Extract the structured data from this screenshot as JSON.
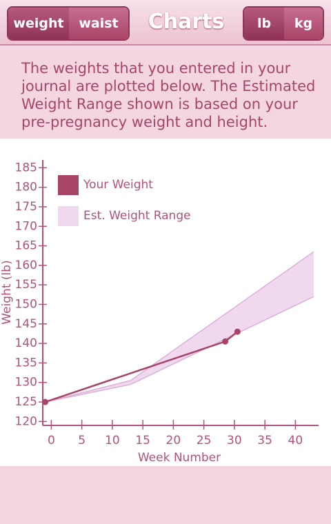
{
  "header": {
    "tabs": [
      "weight",
      "waist"
    ],
    "title": "Charts",
    "units": [
      "lb",
      "kg"
    ]
  },
  "description": [
    "The weights that you entered in your",
    "journal are plotted below. The Estimated",
    "Weight Range shown is based on your",
    "pre-pregnancy weight and height."
  ],
  "chart_data": {
    "type": "line",
    "xlabel": "Week Number",
    "ylabel": "Weight (lb)",
    "xlim": [
      -1.4,
      43.8
    ],
    "ylim": [
      119,
      187
    ],
    "xticks": [
      0,
      5,
      10,
      15,
      20,
      25,
      30,
      35,
      40
    ],
    "yticks": [
      120,
      125,
      130,
      135,
      140,
      145,
      150,
      155,
      160,
      165,
      170,
      175,
      180,
      185
    ],
    "series": [
      {
        "name": "Your Weight",
        "color": "#a84468",
        "x": [
          -1,
          28.5,
          30.5
        ],
        "values": [
          125,
          140.5,
          143
        ]
      },
      {
        "name": "Est. Weight Range",
        "color": "#f0d8ee",
        "kind": "range",
        "x": [
          -1,
          13,
          43
        ],
        "lower": [
          125,
          129.5,
          152
        ],
        "upper": [
          125,
          130.5,
          163.5
        ]
      }
    ]
  }
}
